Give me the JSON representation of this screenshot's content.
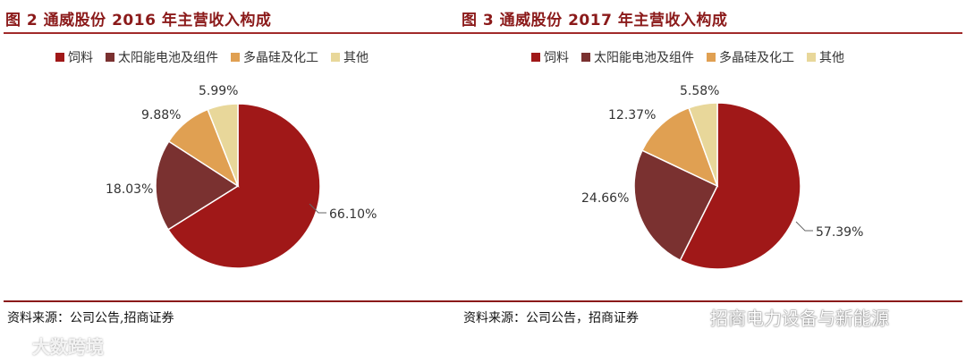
{
  "colors": {
    "feed": "#a01818",
    "solar": "#7a3130",
    "polysilicon": "#e0a052",
    "other": "#e8d79a",
    "title": "#8b1a1a"
  },
  "legend": [
    "饲料",
    "太阳能电池及组件",
    "多晶硅及化工",
    "其他"
  ],
  "chart_data": [
    {
      "type": "pie",
      "title": "图 2  通威股份 2016 年主营收入构成",
      "labels": [
        "饲料",
        "太阳能电池及组件",
        "多晶硅及化工",
        "其他"
      ],
      "values": [
        66.1,
        18.03,
        9.88,
        5.99
      ],
      "data_labels": [
        "66.10%",
        "18.03%",
        "9.88%",
        "5.99%"
      ],
      "legend_position": "top"
    },
    {
      "type": "pie",
      "title": "图 3  通威股份 2017 年主营收入构成",
      "labels": [
        "饲料",
        "太阳能电池及组件",
        "多晶硅及化工",
        "其他"
      ],
      "values": [
        57.39,
        24.66,
        12.37,
        5.58
      ],
      "data_labels": [
        "57.39%",
        "24.66%",
        "12.37%",
        "5.58%"
      ],
      "legend_position": "top"
    }
  ],
  "source_left": "资料来源：公司公告,招商证券",
  "source_right": "资料来源：公司公告，招商证券",
  "watermark_left": "大数跨境",
  "watermark_right": "招商电力设备与新能源"
}
